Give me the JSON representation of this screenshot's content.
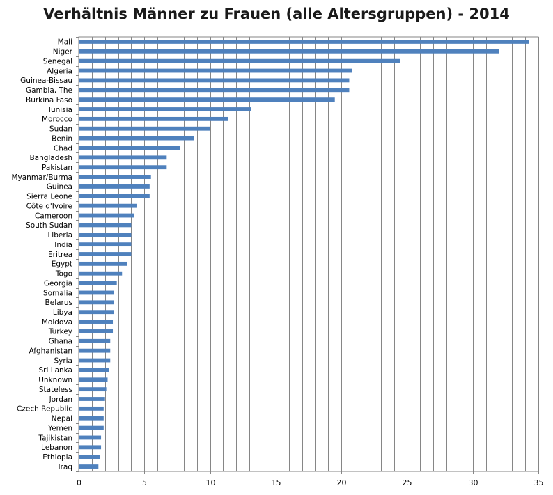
{
  "chart_data": {
    "type": "bar",
    "orientation": "horizontal",
    "title": "Verhältnis Männer zu Frauen (alle Altersgruppen) - 2014",
    "xlabel": "",
    "ylabel": "",
    "xlim": [
      0,
      35
    ],
    "xticks": [
      0,
      5,
      10,
      15,
      20,
      25,
      30,
      35
    ],
    "grid": true,
    "bar_color": "#4f81bd",
    "categories": [
      "Mali",
      "Niger",
      "Senegal",
      "Algeria",
      "Guinea-Bissau",
      "Gambia, The",
      "Burkina Faso",
      "Tunisia",
      "Morocco",
      "Sudan",
      "Benin",
      "Chad",
      "Bangladesh",
      "Pakistan",
      "Myanmar/Burma",
      "Guinea",
      "Sierra Leone",
      "Côte d'Ivoire",
      "Cameroon",
      "South Sudan",
      "Liberia",
      "India",
      "Eritrea",
      "Egypt",
      "Togo",
      "Georgia",
      "Somalia",
      "Belarus",
      "Libya",
      "Moldova",
      "Turkey",
      "Ghana",
      "Afghanistan",
      "Syria",
      "Sri Lanka",
      "Unknown",
      "Stateless",
      "Jordan",
      "Czech Republic",
      "Nepal",
      "Yemen",
      "Tajikistan",
      "Lebanon",
      "Ethiopia",
      "Iraq"
    ],
    "values": [
      34.3,
      32.0,
      24.5,
      20.8,
      20.6,
      20.6,
      19.5,
      13.1,
      11.4,
      10.0,
      8.8,
      7.7,
      6.7,
      6.7,
      5.5,
      5.4,
      5.4,
      4.4,
      4.2,
      4.0,
      4.0,
      4.0,
      4.0,
      3.7,
      3.3,
      2.9,
      2.7,
      2.7,
      2.7,
      2.6,
      2.6,
      2.4,
      2.4,
      2.4,
      2.3,
      2.2,
      2.1,
      2.0,
      1.9,
      1.9,
      1.9,
      1.7,
      1.7,
      1.6,
      1.5
    ]
  }
}
